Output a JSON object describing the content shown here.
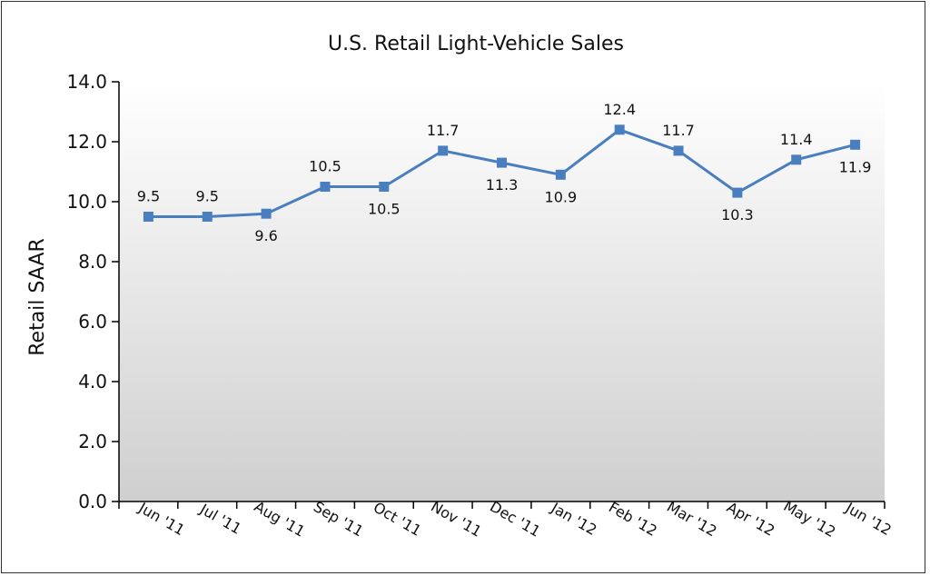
{
  "chart_data": {
    "type": "line",
    "title": "U.S. Retail Light-Vehicle Sales",
    "xlabel": "",
    "ylabel": "Retail SAAR",
    "ylim": [
      0.0,
      14.0
    ],
    "yticks": [
      "0.0",
      "2.0",
      "4.0",
      "6.0",
      "8.0",
      "10.0",
      "12.0",
      "14.0"
    ],
    "categories": [
      "Jun '11",
      "Jul '11",
      "Aug '11",
      "Sep '11",
      "Oct '11",
      "Nov '11",
      "Dec '11",
      "Jan '12",
      "Feb '12",
      "Mar '12",
      "Apr '12",
      "May '12",
      "Jun '12"
    ],
    "series": [
      {
        "values": [
          9.5,
          9.5,
          9.6,
          10.5,
          10.5,
          11.7,
          11.3,
          10.9,
          12.4,
          11.7,
          10.3,
          11.4,
          11.9
        ],
        "labels": [
          "9.5",
          "9.5",
          "9.6",
          "10.5",
          "10.5",
          "11.7",
          "11.3",
          "10.9",
          "12.4",
          "11.7",
          "10.3",
          "11.4",
          "11.9"
        ],
        "label_positions": [
          "above",
          "above",
          "below",
          "above",
          "below",
          "above",
          "below",
          "below",
          "above",
          "above",
          "below",
          "above",
          "below"
        ]
      }
    ],
    "line_color": "#4a7fbf",
    "marker": "square",
    "background_gradient": [
      "#ffffff",
      "#cfcfcf"
    ],
    "grid": false,
    "legend": "none"
  }
}
